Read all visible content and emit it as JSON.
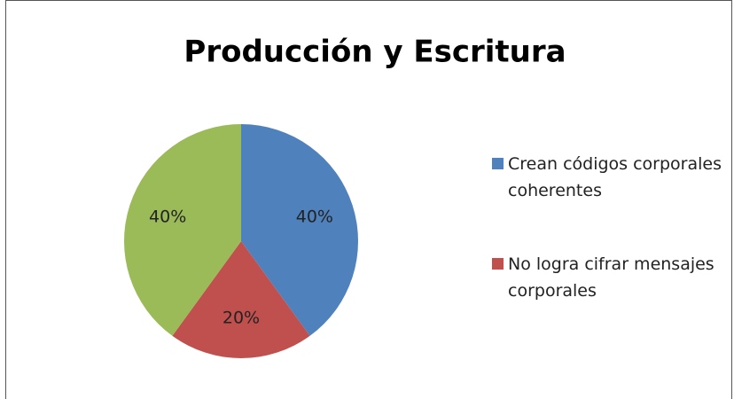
{
  "chart_data": {
    "type": "pie",
    "title": "Producción y Escritura",
    "categories": [
      "Crean códigos corporales coherentes",
      "No logra cifrar mensajes corporales",
      null
    ],
    "values": [
      40,
      20,
      40
    ],
    "value_labels": [
      "40%",
      "20%",
      "40%"
    ],
    "colors": [
      "#4f81bd",
      "#c0504d",
      "#9bbb59"
    ],
    "legend": "right"
  }
}
